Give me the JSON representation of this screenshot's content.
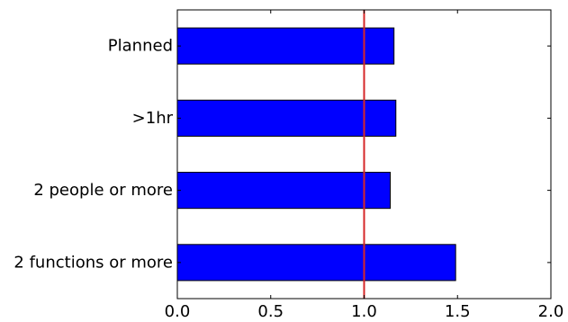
{
  "chart_data": {
    "type": "bar",
    "orientation": "horizontal",
    "categories": [
      "Planned",
      ">1hr",
      "2 people or more",
      "2 functions or more"
    ],
    "values": [
      1.16,
      1.17,
      1.14,
      1.49
    ],
    "xlim": [
      0.0,
      2.0
    ],
    "xticks": [
      "0.0",
      "0.5",
      "1.0",
      "1.5",
      "2.0"
    ],
    "reference_line": {
      "x": 1.0,
      "color": "#d62728"
    },
    "bar_color": "#0000ff",
    "grid": false,
    "title": "",
    "xlabel": "",
    "ylabel": ""
  }
}
